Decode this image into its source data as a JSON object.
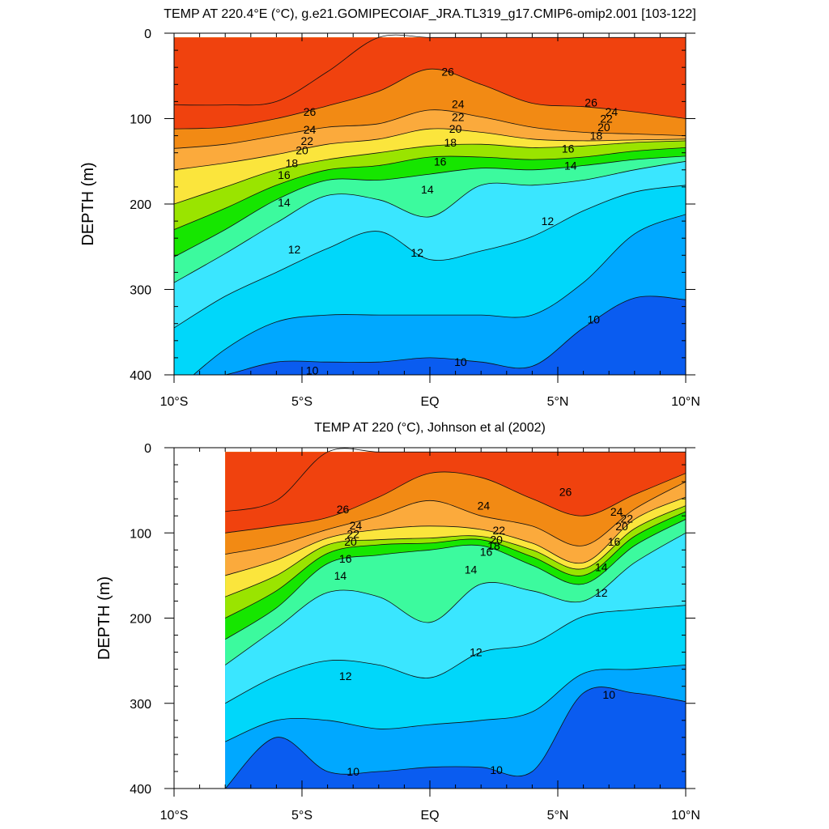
{
  "chart_data": [
    {
      "type": "contour",
      "title": "TEMP AT 220.4°E (°C), g.e21.GOMIPECOIAF_JRA.TL319_g17.CMIP6-omip2.001 [103-122]",
      "ylabel": "DEPTH (m)",
      "xlim": [
        -10,
        10
      ],
      "ylim": [
        0,
        400
      ],
      "y_reversed": true,
      "x_ticks": [
        -10,
        -5,
        0,
        5,
        10
      ],
      "x_tick_labels": [
        "10°S",
        "5°S",
        "EQ",
        "5°N",
        "10°N"
      ],
      "y_ticks": [
        0,
        100,
        200,
        300,
        400
      ],
      "y_tick_labels": [
        "0",
        "100",
        "200",
        "300",
        "400"
      ],
      "data_x_range": [
        -10,
        10
      ],
      "x": [
        -10,
        -8,
        -6,
        -4,
        -2,
        0,
        2,
        4,
        6,
        8,
        10
      ],
      "depth_of_isotherm": [
        {
          "temp": 27,
          "depth": [
            84,
            84,
            80,
            45,
            0,
            0,
            0,
            0,
            0,
            0,
            0
          ]
        },
        {
          "temp": 26,
          "depth": [
            112,
            110,
            100,
            85,
            68,
            42,
            60,
            82,
            86,
            92,
            100
          ]
        },
        {
          "temp": 24,
          "depth": [
            135,
            130,
            120,
            110,
            106,
            90,
            98,
            110,
            116,
            118,
            120
          ]
        },
        {
          "temp": 22,
          "depth": [
            160,
            152,
            142,
            130,
            124,
            112,
            116,
            124,
            126,
            125,
            124
          ]
        },
        {
          "temp": 20,
          "depth": [
            200,
            180,
            160,
            148,
            140,
            132,
            130,
            134,
            132,
            128,
            126
          ]
        },
        {
          "temp": 18,
          "depth": [
            230,
            205,
            178,
            160,
            155,
            145,
            145,
            148,
            145,
            138,
            134
          ]
        },
        {
          "temp": 16,
          "depth": [
            262,
            230,
            195,
            172,
            172,
            165,
            158,
            160,
            155,
            148,
            144
          ]
        },
        {
          "temp": 14,
          "depth": [
            292,
            258,
            222,
            190,
            195,
            215,
            178,
            178,
            172,
            160,
            150
          ]
        },
        {
          "temp": 12,
          "depth": [
            345,
            308,
            280,
            252,
            232,
            265,
            255,
            238,
            208,
            186,
            178
          ]
        },
        {
          "temp": 11,
          "depth": [
            420,
            370,
            338,
            330,
            330,
            330,
            330,
            330,
            292,
            235,
            212
          ]
        },
        {
          "temp": 10,
          "depth": [
            410,
            400,
            385,
            385,
            385,
            380,
            385,
            390,
            345,
            310,
            312
          ]
        }
      ],
      "contour_labels": [
        {
          "text": "26",
          "x": -4.7,
          "depth": 92
        },
        {
          "text": "24",
          "x": -4.7,
          "depth": 113
        },
        {
          "text": "22",
          "x": -4.8,
          "depth": 126
        },
        {
          "text": "20",
          "x": -5.0,
          "depth": 137
        },
        {
          "text": "18",
          "x": -5.4,
          "depth": 152
        },
        {
          "text": "16",
          "x": -5.7,
          "depth": 166
        },
        {
          "text": "14",
          "x": -5.7,
          "depth": 198
        },
        {
          "text": "12",
          "x": -5.3,
          "depth": 253
        },
        {
          "text": "10",
          "x": -4.6,
          "depth": 395
        },
        {
          "text": "26",
          "x": 0.7,
          "depth": 45
        },
        {
          "text": "24",
          "x": 1.1,
          "depth": 83
        },
        {
          "text": "22",
          "x": 1.1,
          "depth": 98
        },
        {
          "text": "20",
          "x": 1.0,
          "depth": 112
        },
        {
          "text": "18",
          "x": 0.8,
          "depth": 128
        },
        {
          "text": "16",
          "x": 0.4,
          "depth": 150
        },
        {
          "text": "14",
          "x": -0.1,
          "depth": 183
        },
        {
          "text": "12",
          "x": -0.5,
          "depth": 257
        },
        {
          "text": "10",
          "x": 1.2,
          "depth": 385
        },
        {
          "text": "26",
          "x": 6.3,
          "depth": 81
        },
        {
          "text": "24",
          "x": 7.1,
          "depth": 92
        },
        {
          "text": "22",
          "x": 6.9,
          "depth": 100
        },
        {
          "text": "20",
          "x": 6.8,
          "depth": 110
        },
        {
          "text": "18",
          "x": 6.5,
          "depth": 120
        },
        {
          "text": "16",
          "x": 5.4,
          "depth": 135
        },
        {
          "text": "14",
          "x": 5.5,
          "depth": 155
        },
        {
          "text": "12",
          "x": 4.6,
          "depth": 220
        },
        {
          "text": "10",
          "x": 6.4,
          "depth": 335
        }
      ]
    },
    {
      "type": "contour",
      "title": "TEMP AT 220 (°C), Johnson et al (2002)",
      "ylabel": "DEPTH (m)",
      "xlim": [
        -10,
        10
      ],
      "ylim": [
        0,
        400
      ],
      "y_reversed": true,
      "x_ticks": [
        -10,
        -5,
        0,
        5,
        10
      ],
      "x_tick_labels": [
        "10°S",
        "5°S",
        "EQ",
        "5°N",
        "10°N"
      ],
      "y_ticks": [
        0,
        100,
        200,
        300,
        400
      ],
      "y_tick_labels": [
        "0",
        "100",
        "200",
        "300",
        "400"
      ],
      "data_x_range": [
        -8,
        10
      ],
      "x": [
        -8,
        -6,
        -4,
        -2,
        0,
        2,
        4,
        6,
        8,
        10
      ],
      "depth_of_isotherm": [
        {
          "temp": 27,
          "depth": [
            75,
            62,
            0,
            0,
            0,
            0,
            0,
            0,
            0,
            0
          ]
        },
        {
          "temp": 26,
          "depth": [
            100,
            92,
            82,
            58,
            30,
            35,
            60,
            80,
            55,
            30
          ]
        },
        {
          "temp": 24,
          "depth": [
            125,
            114,
            96,
            80,
            62,
            80,
            92,
            115,
            72,
            40
          ]
        },
        {
          "temp": 22,
          "depth": [
            150,
            132,
            106,
            96,
            92,
            96,
            112,
            135,
            84,
            58
          ]
        },
        {
          "temp": 20,
          "depth": [
            175,
            150,
            114,
            108,
            106,
            104,
            120,
            142,
            95,
            68
          ]
        },
        {
          "temp": 18,
          "depth": [
            200,
            168,
            124,
            114,
            112,
            108,
            128,
            150,
            104,
            75
          ]
        },
        {
          "temp": 16,
          "depth": [
            225,
            188,
            136,
            126,
            120,
            115,
            138,
            160,
            115,
            84
          ]
        },
        {
          "temp": 14,
          "depth": [
            255,
            212,
            170,
            175,
            205,
            160,
            168,
            180,
            135,
            100
          ]
        },
        {
          "temp": 12,
          "depth": [
            300,
            268,
            250,
            255,
            270,
            240,
            230,
            198,
            190,
            185
          ]
        },
        {
          "temp": 11,
          "depth": [
            345,
            320,
            320,
            330,
            325,
            320,
            310,
            265,
            260,
            255
          ]
        },
        {
          "temp": 10,
          "depth": [
            400,
            340,
            380,
            380,
            375,
            375,
            380,
            288,
            288,
            298
          ]
        }
      ],
      "contour_labels": [
        {
          "text": "26",
          "x": -3.4,
          "depth": 72
        },
        {
          "text": "24",
          "x": -2.9,
          "depth": 91
        },
        {
          "text": "22",
          "x": -3.0,
          "depth": 101
        },
        {
          "text": "20",
          "x": -3.1,
          "depth": 110
        },
        {
          "text": "16",
          "x": -3.3,
          "depth": 130
        },
        {
          "text": "14",
          "x": -3.5,
          "depth": 150
        },
        {
          "text": "12",
          "x": -3.3,
          "depth": 268
        },
        {
          "text": "10",
          "x": -3.0,
          "depth": 380
        },
        {
          "text": "24",
          "x": 2.1,
          "depth": 68
        },
        {
          "text": "22",
          "x": 2.7,
          "depth": 97
        },
        {
          "text": "20",
          "x": 2.6,
          "depth": 108
        },
        {
          "text": "18",
          "x": 2.5,
          "depth": 115
        },
        {
          "text": "16",
          "x": 2.2,
          "depth": 122
        },
        {
          "text": "14",
          "x": 1.6,
          "depth": 143
        },
        {
          "text": "12",
          "x": 1.8,
          "depth": 240
        },
        {
          "text": "10",
          "x": 2.6,
          "depth": 378
        },
        {
          "text": "26",
          "x": 5.3,
          "depth": 52
        },
        {
          "text": "24",
          "x": 7.3,
          "depth": 75
        },
        {
          "text": "22",
          "x": 7.7,
          "depth": 83
        },
        {
          "text": "20",
          "x": 7.5,
          "depth": 92
        },
        {
          "text": "16",
          "x": 7.2,
          "depth": 110
        },
        {
          "text": "14",
          "x": 6.7,
          "depth": 140
        },
        {
          "text": "12",
          "x": 6.7,
          "depth": 170
        },
        {
          "text": "10",
          "x": 7.0,
          "depth": 290
        }
      ]
    }
  ],
  "colors": {
    "fill_by_temp": {
      "27": "#f0420e",
      "26": "#f28a14",
      "24": "#fbaa3c",
      "22": "#fbe53c",
      "20": "#9ae400",
      "18": "#16e600",
      "16": "#3cfa9e",
      "14": "#3ae6ff",
      "12": "#00d7fa",
      "11": "#00a8ff",
      "10": "#0a5cf0"
    },
    "contour_line": "#111111",
    "axis": "#000000"
  }
}
